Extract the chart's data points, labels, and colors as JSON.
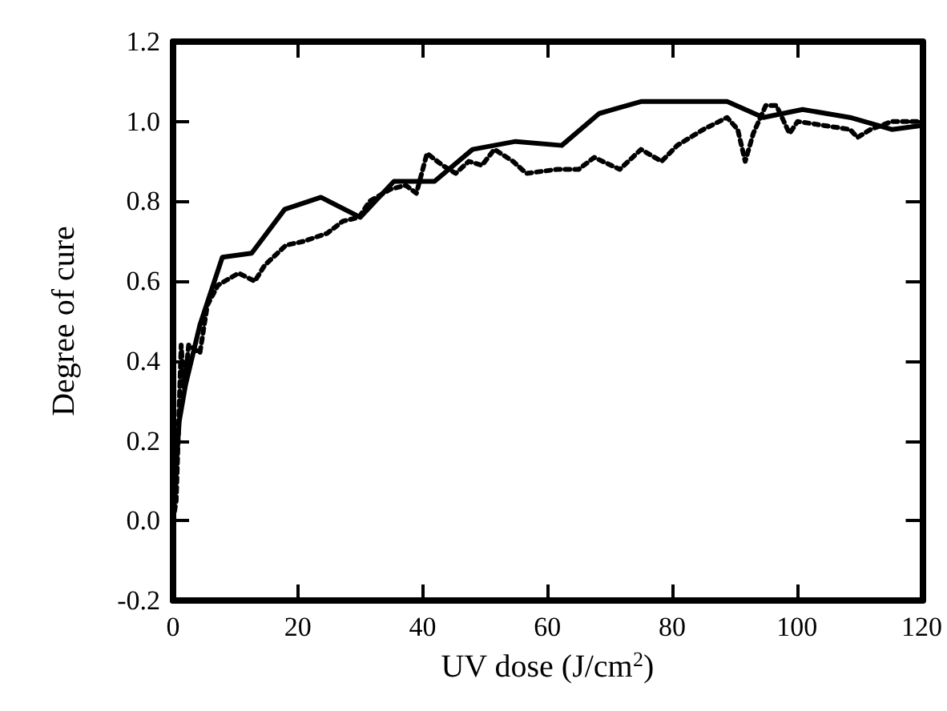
{
  "chart_data": {
    "type": "line",
    "xlabel": "UV dose (J/cm$^{2}$)",
    "ylabel": "Degree of cure",
    "xlim": [
      0,
      120
    ],
    "xticks": [
      0,
      20,
      40,
      60,
      80,
      100,
      120
    ],
    "ylim": [
      -0.2,
      1.2
    ],
    "yticks": [
      -0.2,
      {
        "value": 0,
        "label": "0.0"
      },
      0.2,
      0.4,
      0.6,
      0.8,
      {
        "value": 1,
        "label": "1.0"
      },
      1.2
    ],
    "grid": false,
    "marker": "none",
    "series": [
      {
        "color": "#000000",
        "line_style": "solid",
        "x": [
          0,
          1,
          2,
          4.3,
          7.9,
          12.6,
          17.9,
          23.7,
          30,
          35.4,
          41.9,
          48,
          54.9,
          62.3,
          68.3,
          75,
          82.5,
          88.8,
          94.6,
          100.9,
          108.5,
          115.2,
          120
        ],
        "values": [
          0.03,
          0.25,
          0.34,
          0.49,
          0.66,
          0.67,
          0.78,
          0.81,
          0.76,
          0.85,
          0.85,
          0.93,
          0.95,
          0.94,
          1.02,
          1.05,
          1.05,
          1.05,
          1.01,
          1.03,
          1.01,
          0.98,
          0.99
        ]
      },
      {
        "color": "#000000",
        "line_style": "dotted",
        "x": [
          0,
          0.5,
          1.3,
          1.8,
          2.5,
          4.3,
          5.5,
          7.2,
          10.5,
          13.1,
          14.7,
          18.1,
          21,
          24.7,
          27.2,
          29.8,
          31.5,
          34.8,
          37.3,
          39,
          40.7,
          43.2,
          45.3,
          47.4,
          49.5,
          51.5,
          54.5,
          56.6,
          61.6,
          65,
          67.5,
          71.6,
          75,
          78.3,
          80.8,
          85,
          88.8,
          90.5,
          91.7,
          93,
          95,
          96.7,
          98.8,
          100.1,
          104.3,
          108.5,
          109.7,
          111.8,
          115.2,
          120
        ],
        "values": [
          0.0,
          0.05,
          0.44,
          0.33,
          0.44,
          0.42,
          0.54,
          0.59,
          0.62,
          0.6,
          0.64,
          0.69,
          0.7,
          0.72,
          0.75,
          0.76,
          0.8,
          0.83,
          0.84,
          0.82,
          0.92,
          0.89,
          0.87,
          0.9,
          0.89,
          0.93,
          0.9,
          0.87,
          0.88,
          0.88,
          0.91,
          0.88,
          0.93,
          0.9,
          0.94,
          0.98,
          1.01,
          0.98,
          0.9,
          0.97,
          1.04,
          1.04,
          0.97,
          1.0,
          0.99,
          0.98,
          0.96,
          0.98,
          1.0,
          1.0
        ]
      }
    ]
  }
}
